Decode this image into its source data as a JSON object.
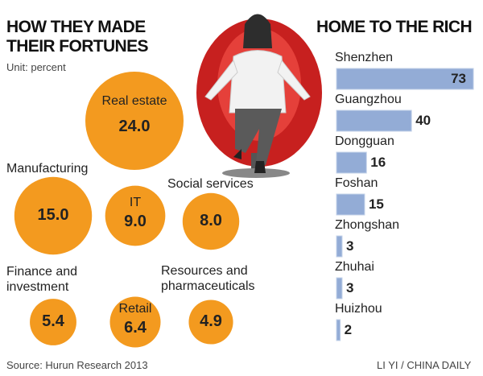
{
  "chart_data": [
    {
      "type": "bubble",
      "title": "HOW THEY MADE THEIR FORTUNES",
      "subtitle": "Unit: percent",
      "categories": [
        "Real estate",
        "Manufacturing",
        "IT",
        "Social services",
        "Finance and investment",
        "Retail",
        "Resources and pharmaceuticals"
      ],
      "values": [
        24.0,
        15.0,
        9.0,
        8.0,
        5.4,
        6.4,
        4.9
      ],
      "value_labels": [
        "24.0",
        "15.0",
        "9.0",
        "8.0",
        "5.4",
        "6.4",
        "4.9"
      ],
      "color": "#f39a1f"
    },
    {
      "type": "hbar",
      "title": "HOME TO THE RICH",
      "categories": [
        "Shenzhen",
        "Guangzhou",
        "Dongguan",
        "Foshan",
        "Zhongshan",
        "Zhuhai",
        "Huizhou"
      ],
      "values": [
        73,
        40,
        16,
        15,
        3,
        3,
        2
      ],
      "color": "#93acd6"
    }
  ],
  "source": "Source: Hurun Research 2013",
  "credit": "LI YI / CHINA DAILY"
}
